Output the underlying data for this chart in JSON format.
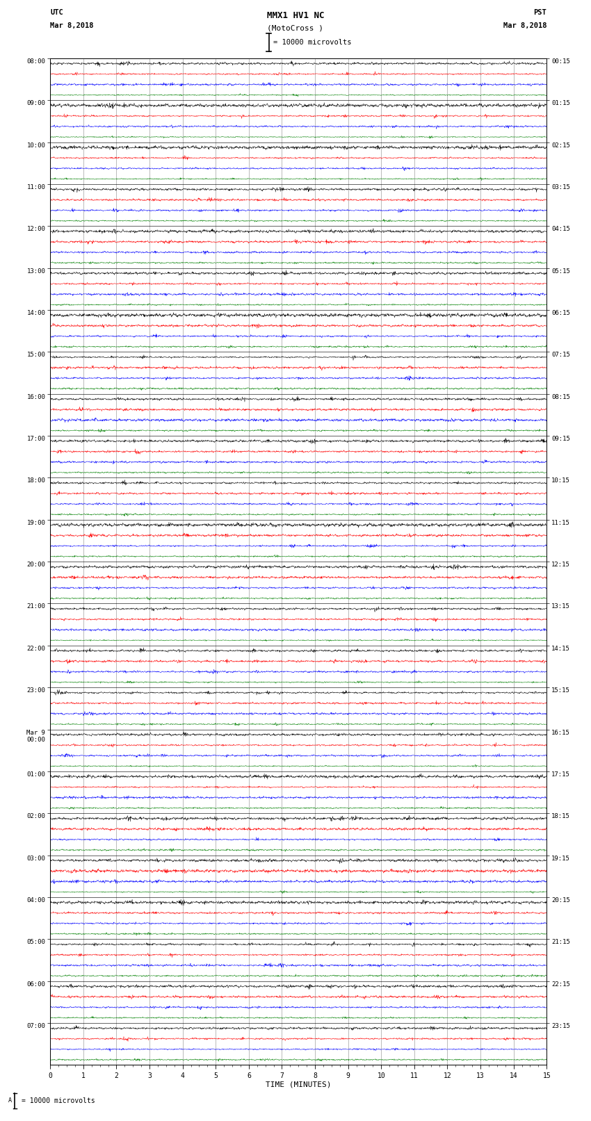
{
  "title_line1": "MMX1 HV1 NC",
  "title_line2": "(MotoCross )",
  "scale_label": "= 10000 microvolts",
  "bottom_scale_label": "= 10000 microvolts",
  "utc_label": "UTC",
  "utc_date": "Mar 8,2018",
  "pst_label": "PST",
  "pst_date": "Mar 8,2018",
  "xlabel": "TIME (MINUTES)",
  "xmin": 0,
  "xmax": 15,
  "xticks": [
    0,
    1,
    2,
    3,
    4,
    5,
    6,
    7,
    8,
    9,
    10,
    11,
    12,
    13,
    14,
    15
  ],
  "left_labels": [
    "08:00",
    "09:00",
    "10:00",
    "11:00",
    "12:00",
    "13:00",
    "14:00",
    "15:00",
    "16:00",
    "17:00",
    "18:00",
    "19:00",
    "20:00",
    "21:00",
    "22:00",
    "23:00",
    "Mar 9\n00:00",
    "01:00",
    "02:00",
    "03:00",
    "04:00",
    "05:00",
    "06:00",
    "07:00"
  ],
  "right_labels": [
    "00:15",
    "01:15",
    "02:15",
    "03:15",
    "04:15",
    "05:15",
    "06:15",
    "07:15",
    "08:15",
    "09:15",
    "10:15",
    "11:15",
    "12:15",
    "13:15",
    "14:15",
    "15:15",
    "16:15",
    "17:15",
    "18:15",
    "19:15",
    "20:15",
    "21:15",
    "22:15",
    "23:15"
  ],
  "trace_colors": [
    "black",
    "red",
    "blue",
    "green"
  ],
  "n_hours": 24,
  "traces_per_hour": 4,
  "background_color": "white",
  "vgrid_color": "#888888",
  "hline_color": "black",
  "noise_amplitude": 0.3,
  "trace_linewidth": 0.35,
  "figsize": [
    8.5,
    16.13
  ],
  "dpi": 100
}
